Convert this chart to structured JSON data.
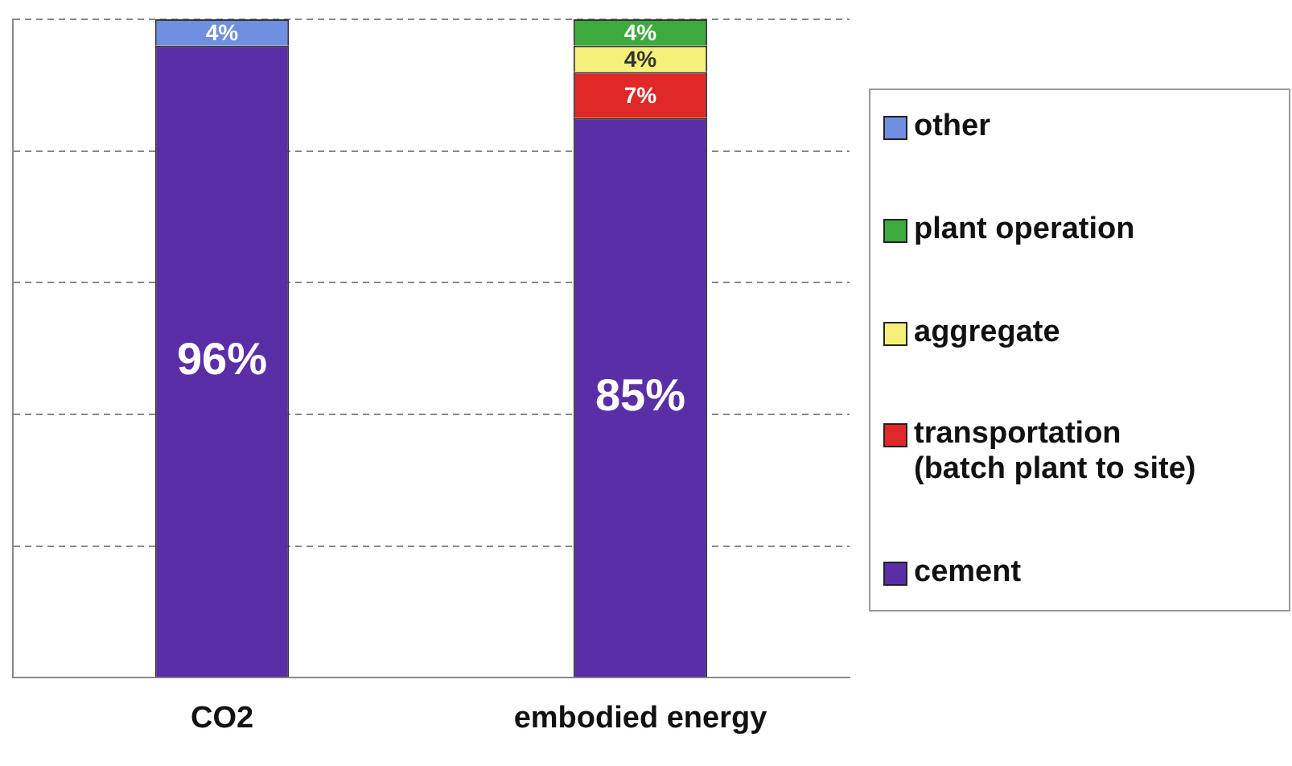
{
  "chart_data": {
    "type": "bar",
    "stacked": true,
    "categories": [
      "CO2",
      "embodied energy"
    ],
    "series": [
      {
        "name": "cement",
        "color": "#5a2ea6",
        "values": [
          96,
          85
        ],
        "value_labels": [
          "96%",
          "85%"
        ]
      },
      {
        "name": "transportation\n(batch plant to site)",
        "color": "#e02828",
        "values": [
          0,
          7
        ],
        "value_labels": [
          null,
          "7%"
        ]
      },
      {
        "name": "aggregate",
        "color": "#f4f078",
        "values": [
          0,
          4
        ],
        "value_labels": [
          null,
          "4%"
        ]
      },
      {
        "name": "plant operation",
        "color": "#3caa3c",
        "values": [
          0,
          4
        ],
        "value_labels": [
          null,
          "4%"
        ]
      },
      {
        "name": "other",
        "color": "#6f8fe0",
        "values": [
          4,
          null
        ],
        "value_labels": [
          "4%",
          null
        ]
      }
    ],
    "ylim": [
      0,
      100
    ],
    "yticks": [
      0,
      20,
      40,
      60,
      80,
      100
    ],
    "tick_labels": "x",
    "grid": "y",
    "legend": "right"
  }
}
